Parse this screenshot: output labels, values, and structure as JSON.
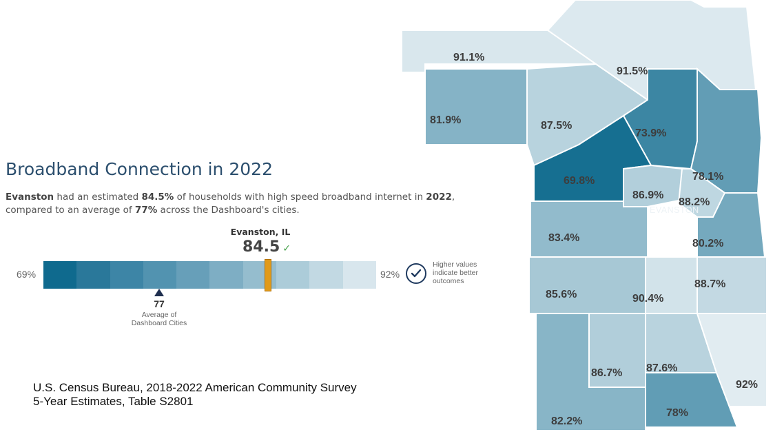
{
  "panel": {
    "title": "Broadband Connection in 2022",
    "desc_part1": "Evanston",
    "desc_part2": " had an estimated ",
    "desc_part3": "84.5%",
    "desc_part4": " of households with high speed broadband internet in ",
    "desc_part5": "2022",
    "desc_part6": ",",
    "desc_line2_a": "compared to an average of ",
    "desc_line2_b": "77%",
    "desc_line2_c": " across the Dashboard's cities.",
    "marker_city": "Evanston, IL",
    "marker_value": "84.5",
    "marker_check": "✓",
    "scale_min_label": "69%",
    "scale_max_label": "92%",
    "scale_min": 69,
    "scale_max": 92,
    "marker_numeric": 84.5,
    "average_value": "77",
    "average_label": "Average of\nDashboard Cities",
    "better_note": "Higher values\nindicate better\noutcomes",
    "scale_colors": [
      "#0f6a8e",
      "#2a789a",
      "#3d85a6",
      "#5293b0",
      "#679fb9",
      "#7eaec4",
      "#95bdce",
      "#acccd9",
      "#c2d9e3",
      "#d8e6ed"
    ]
  },
  "source": {
    "line1": "U.S. Census Bureau, 2018-2022 American Community Survey",
    "line2": "5-Year Estimates, Table S2801"
  },
  "map": {
    "city_label": "EVANSTON",
    "tracts": [
      {
        "label": "91.1%",
        "value": 91.1
      },
      {
        "label": "91.5%",
        "value": 91.5
      },
      {
        "label": "81.9%",
        "value": 81.9
      },
      {
        "label": "87.5%",
        "value": 87.5
      },
      {
        "label": "73.9%",
        "value": 73.9
      },
      {
        "label": "69.8%",
        "value": 69.8
      },
      {
        "label": "78.1%",
        "value": 78.1
      },
      {
        "label": "86.9%",
        "value": 86.9
      },
      {
        "label": "88.2%",
        "value": 88.2
      },
      {
        "label": "83.4%",
        "value": 83.4
      },
      {
        "label": "80.2%",
        "value": 80.2
      },
      {
        "label": "85.6%",
        "value": 85.6
      },
      {
        "label": "90.4%",
        "value": 90.4
      },
      {
        "label": "88.7%",
        "value": 88.7
      },
      {
        "label": "86.7%",
        "value": 86.7
      },
      {
        "label": "87.6%",
        "value": 87.6
      },
      {
        "label": "92%",
        "value": 92
      },
      {
        "label": "82.2%",
        "value": 82.2
      },
      {
        "label": "78%",
        "value": 78
      }
    ]
  }
}
